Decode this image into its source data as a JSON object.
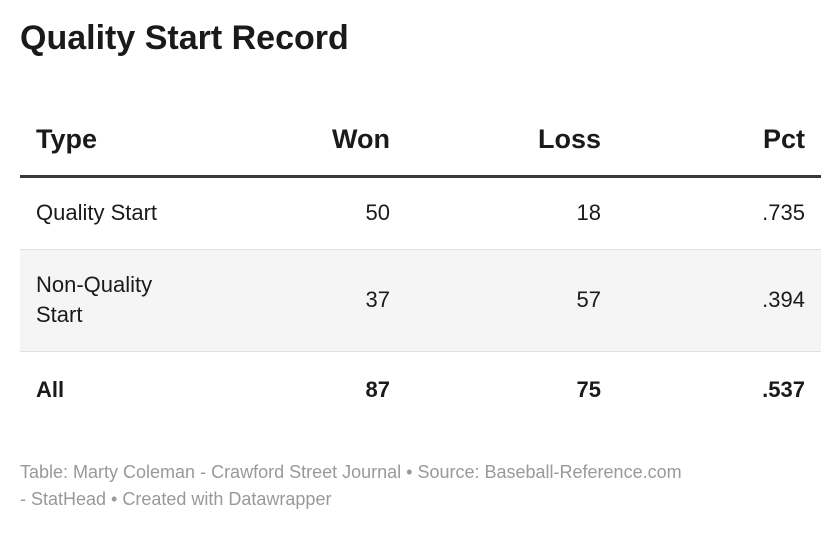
{
  "title": "Quality Start Record",
  "table": {
    "columns": {
      "type": "Type",
      "won": "Won",
      "loss": "Loss",
      "pct": "Pct"
    },
    "rows": [
      {
        "type": "Quality Start",
        "won": "50",
        "loss": "18",
        "pct": ".735"
      },
      {
        "type": "Non-Quality Start",
        "won": "37",
        "loss": "57",
        "pct": ".394"
      },
      {
        "type": "All",
        "won": "87",
        "loss": "75",
        "pct": ".537"
      }
    ]
  },
  "footer": {
    "line1": "Table: Marty Coleman - Crawford Street Journal • Source: Baseball-Reference.com",
    "line2": "- StatHead • Created with Datawrapper"
  },
  "colors": {
    "text": "#1a1a1a",
    "header_rule": "#393939",
    "row_separator": "#e0e0e0",
    "zebra_row_background": "#f5f5f5",
    "footer_text": "#999999",
    "page_background": "#ffffff"
  },
  "chart_data": {
    "type": "table",
    "title": "Quality Start Record",
    "columns": [
      "Type",
      "Won",
      "Loss",
      "Pct"
    ],
    "rows": [
      [
        "Quality Start",
        50,
        18,
        0.735
      ],
      [
        "Non-Quality Start",
        37,
        57,
        0.394
      ],
      [
        "All",
        87,
        75,
        0.537
      ]
    ],
    "layout_hints": {
      "numeric_columns_right_aligned": true,
      "total_row_bold": true,
      "zebra_striping": "second row shaded",
      "header_rule": "thick dark line under header"
    },
    "credit": "Table: Marty Coleman - Crawford Street Journal • Source: Baseball-Reference.com - StatHead • Created with Datawrapper"
  }
}
